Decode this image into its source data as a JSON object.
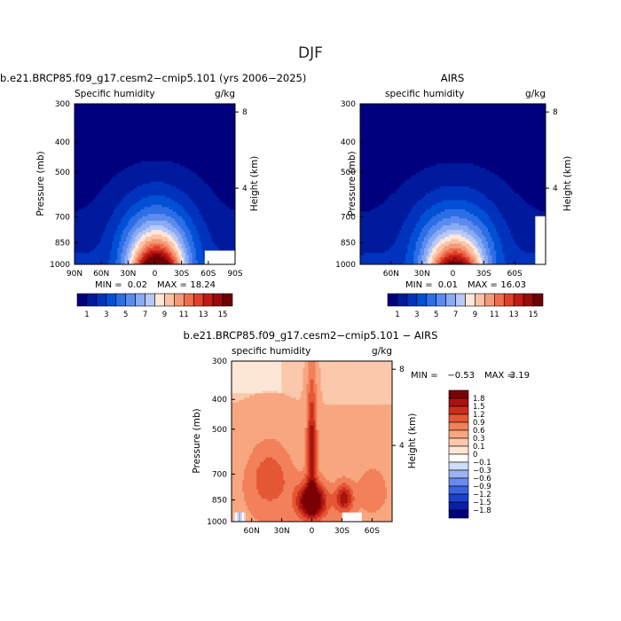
{
  "page": {
    "title": "DJF"
  },
  "colors": {
    "humidity_palette": [
      "#00007f",
      "#001a9e",
      "#0033bd",
      "#0050d6",
      "#2d6ee6",
      "#5a8cf0",
      "#8aaaf4",
      "#b8c9f8",
      "#ffe8d8",
      "#fbc2a6",
      "#f59a78",
      "#ee6e4c",
      "#e0402a",
      "#c11a14",
      "#9a0a0c",
      "#6e0002"
    ],
    "diff_palette": [
      "#00007f",
      "#0a1fa8",
      "#1b40c9",
      "#3b62e0",
      "#6a8aee",
      "#9cb2f5",
      "#cfdcfb",
      "#ffffff",
      "#fde6d6",
      "#fbc8ac",
      "#f8a680",
      "#f2805a",
      "#e55735",
      "#cc2e1c",
      "#a8120f",
      "#7a0006"
    ]
  },
  "chart_data": [
    {
      "type": "heatmap",
      "title": "b.e21.BRCP85.f09_g17.cesm2−cmip5.101 (yrs 2006−2025)",
      "subtitle_left": "Specific humidity",
      "units": "g/kg",
      "ylabel": "Pressure (mb)",
      "y2label": "Height (km)",
      "x_ticks": [
        "90N",
        "60N",
        "30N",
        "0",
        "30S",
        "60S",
        "90S"
      ],
      "x_tick_values": [
        90,
        60,
        30,
        0,
        -30,
        -60,
        -90
      ],
      "xlim": [
        90,
        -90
      ],
      "y_ticks": [
        "300",
        "400",
        "500",
        "700",
        "850",
        "1000"
      ],
      "y_tick_values": [
        300,
        400,
        500,
        700,
        850,
        1000
      ],
      "ylim": [
        1000,
        300
      ],
      "y2_ticks": [
        "8",
        "4"
      ],
      "y2_tick_values": [
        8,
        4
      ],
      "peak": {
        "lat": -2,
        "value": 18.24,
        "width": 30
      },
      "missing_region": {
        "lat": [
          -55,
          -90
        ],
        "p": [
          900,
          1000
        ]
      },
      "stats": {
        "min_label": "MIN =",
        "min": "0.02",
        "max_label": "MAX =",
        "max": "18.24"
      }
    },
    {
      "type": "heatmap",
      "title": "AIRS",
      "subtitle_left": "specific humidity",
      "units": "g/kg",
      "ylabel": "Pressure (mb)",
      "y2label": "Height (km)",
      "x_ticks": [
        "60N",
        "30N",
        "0",
        "30S",
        "60S"
      ],
      "x_tick_values": [
        60,
        30,
        0,
        -30,
        -60
      ],
      "xlim": [
        90,
        -90
      ],
      "y_ticks": [
        "300",
        "400",
        "500",
        "700",
        "850",
        "1000"
      ],
      "y_tick_values": [
        300,
        400,
        500,
        700,
        850,
        1000
      ],
      "ylim": [
        1000,
        300
      ],
      "y2_ticks": [
        "8",
        "4"
      ],
      "y2_tick_values": [
        8,
        4
      ],
      "peak": {
        "lat": -2,
        "value": 16.03,
        "width": 28
      },
      "missing_region": {
        "lat": [
          -80,
          -90
        ],
        "p": [
          700,
          1000
        ]
      },
      "stats": {
        "min_label": "MIN =",
        "min": "0.01",
        "max_label": "MAX =",
        "max": "16.03"
      }
    },
    {
      "type": "heatmap",
      "title": "b.e21.BRCP85.f09_g17.cesm2−cmip5.101 − AIRS",
      "subtitle_left": "specific humidity",
      "units": "g/kg",
      "ylabel": "Pressure (mb)",
      "y2label": "Height (km)",
      "x_ticks": [
        "60N",
        "30N",
        "0",
        "30S",
        "60S"
      ],
      "x_tick_values": [
        60,
        30,
        0,
        -30,
        -60
      ],
      "xlim": [
        80,
        -80
      ],
      "y_ticks": [
        "300",
        "400",
        "500",
        "700",
        "850",
        "1000"
      ],
      "y_tick_values": [
        300,
        400,
        500,
        700,
        850,
        1000
      ],
      "ylim": [
        1000,
        300
      ],
      "y2_ticks": [
        "8",
        "4"
      ],
      "y2_tick_values": [
        8,
        4
      ],
      "stats": {
        "min_label": "MIN =",
        "min": "−0.53",
        "max_label": "MAX =",
        "max": "3.19"
      }
    }
  ],
  "colorbar_humidity": {
    "labels": [
      "1",
      "3",
      "5",
      "7",
      "9",
      "11",
      "13",
      "15"
    ],
    "levels": [
      1,
      2,
      3,
      4,
      5,
      6,
      7,
      8,
      9,
      10,
      11,
      12,
      13,
      14,
      15
    ]
  },
  "colorbar_diff": {
    "labels": [
      "1.8",
      "1.5",
      "1.2",
      "0.9",
      "0.6",
      "0.3",
      "0.1",
      "0",
      "−0.1",
      "−0.3",
      "−0.6",
      "−0.9",
      "−1.2",
      "−1.5",
      "−1.8"
    ]
  }
}
